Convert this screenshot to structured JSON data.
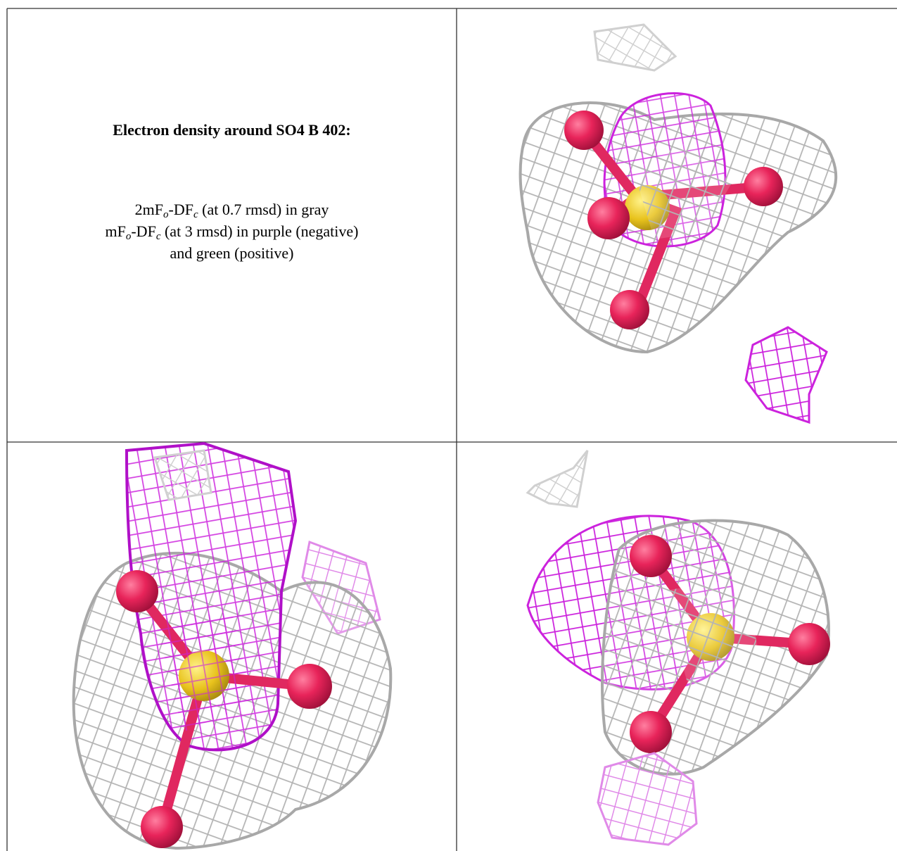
{
  "title": "Electron density around SO4 B 402:",
  "legend": [
    [
      "2mF",
      "o",
      "-DF",
      "c",
      "(at 0.7 rmsd) in gray"
    ],
    [
      "mF",
      "o",
      "-DF",
      "c",
      "(at 3 rmsd) in purple (negative)"
    ],
    [
      "and green (positive)"
    ]
  ]
}
